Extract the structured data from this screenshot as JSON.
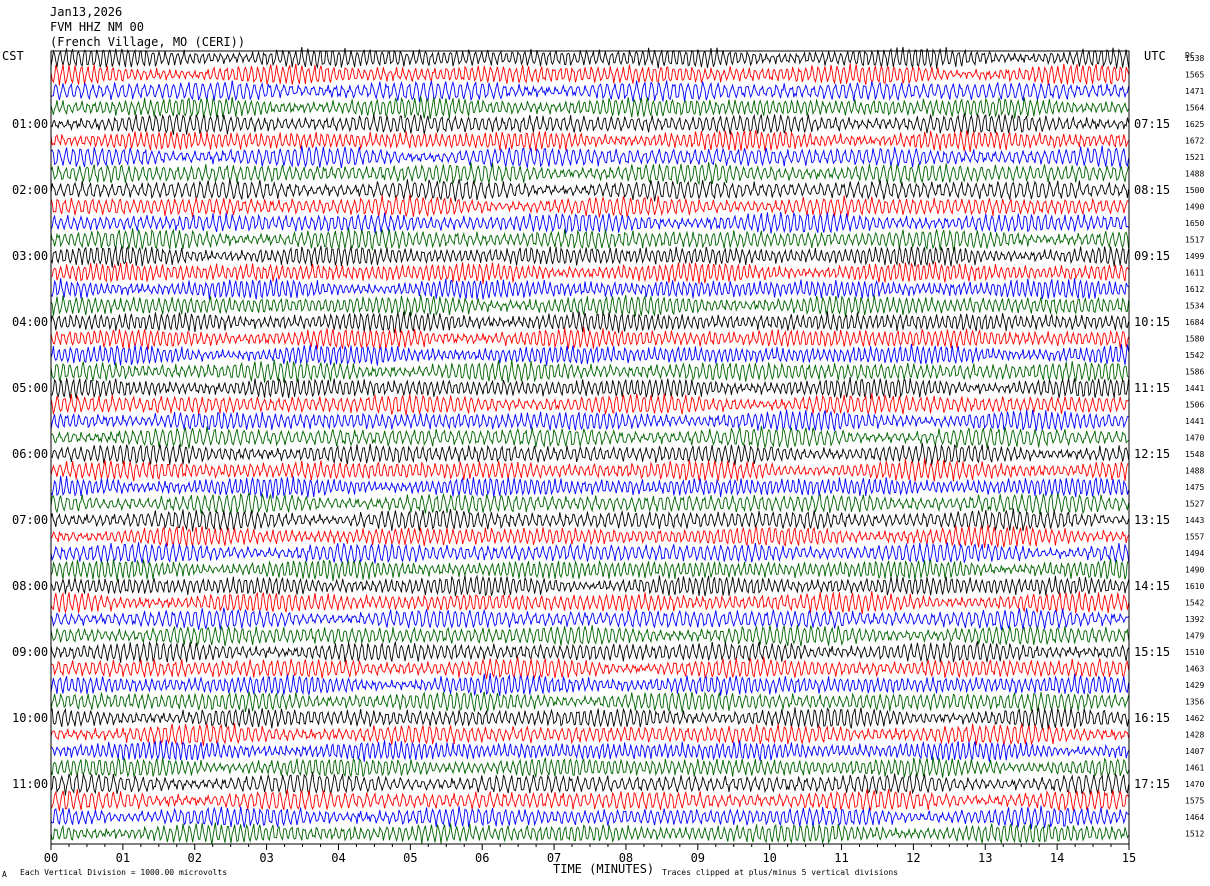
{
  "header": {
    "date": "Jan13,2026",
    "station": "FVM HHZ NM 00",
    "location": "(French Village, MO (CERI))"
  },
  "labels": {
    "left_tz": "CST",
    "right_tz": "UTC",
    "dc": "DC"
  },
  "footer": {
    "left_marker": "A",
    "scale": "Each Vertical Division = 1000.00 microvolts",
    "clip": "Traces clipped at plus/minus 5 vertical divisions"
  },
  "chart_data": {
    "type": "line",
    "title": "",
    "xlabel": "TIME (MINUTES)",
    "ylabel": "",
    "xlim": [
      0,
      15
    ],
    "x_ticks": [
      "00",
      "01",
      "02",
      "03",
      "04",
      "05",
      "06",
      "07",
      "08",
      "09",
      "10",
      "11",
      "12",
      "13",
      "14",
      "15"
    ],
    "trace_colors": [
      "#000000",
      "#ff0000",
      "#0000ff",
      "#006400"
    ],
    "left_hour_labels": [
      "01:00",
      "02:00",
      "03:00",
      "04:00",
      "05:00",
      "06:00",
      "07:00",
      "08:00",
      "09:00",
      "10:00",
      "11:00"
    ],
    "right_hour_labels": [
      "07:15",
      "08:15",
      "09:15",
      "10:15",
      "11:15",
      "12:15",
      "13:15",
      "14:15",
      "15:15",
      "16:15",
      "17:15"
    ],
    "dc_offsets": [
      "1538",
      "1565",
      "1471",
      "1564",
      "1625",
      "1672",
      "1521",
      "1488",
      "1500",
      "1490",
      "1650",
      "1517",
      "1499",
      "1611",
      "1612",
      "1534",
      "1684",
      "1580",
      "1542",
      "1586",
      "1441",
      "1506",
      "1441",
      "1470",
      "1548",
      "1488",
      "1475",
      "1527",
      "1443",
      "1557",
      "1494",
      "1490",
      "1610",
      "1542",
      "1392",
      "1479",
      "1510",
      "1463",
      "1429",
      "1356",
      "1462",
      "1428",
      "1407",
      "1461",
      "1470",
      "1575",
      "1464",
      "1512"
    ]
  }
}
